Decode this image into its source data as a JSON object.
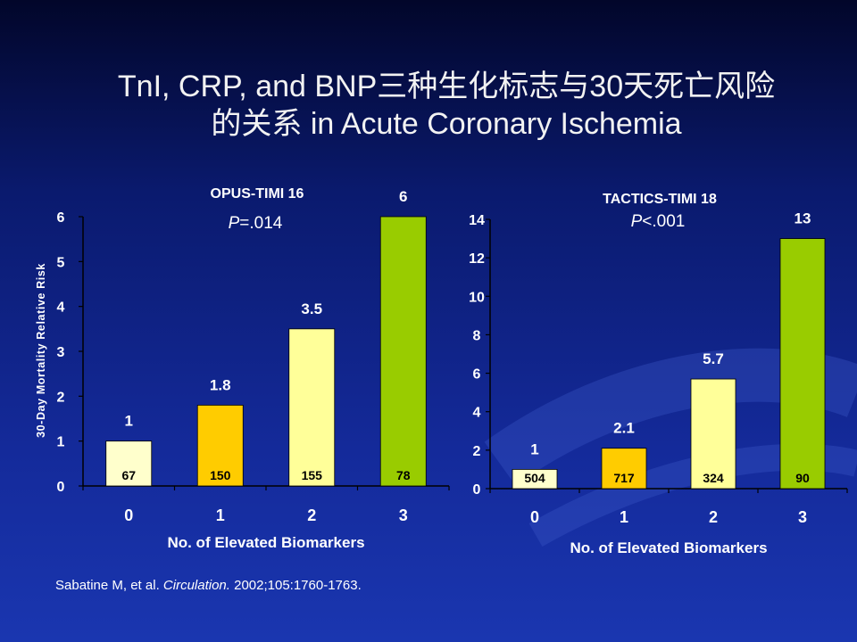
{
  "slide": {
    "title_line1": "TnI, CRP, and BNP三种生化标志与30天死亡风险",
    "title_line2": "的关系 in Acute Coronary Ischemia",
    "citation_prefix": "Sabatine M, et al. ",
    "citation_journal": "Circulation.",
    "citation_suffix": " 2002;105:1760-1763."
  },
  "chart_data": [
    {
      "type": "bar",
      "title": "OPUS-TIMI 16",
      "p_label": "P",
      "p_value": "=.014",
      "xlabel": "No. of Elevated Biomarkers",
      "ylabel": "30-Day Mortality Relative Risk",
      "categories": [
        "0",
        "1",
        "2",
        "3"
      ],
      "values": [
        1,
        1.8,
        3.5,
        6
      ],
      "value_labels": [
        "1",
        "1.8",
        "3.5",
        "6"
      ],
      "n_labels": [
        "67",
        "150",
        "155",
        "78"
      ],
      "bar_colors": [
        "#ffffcc",
        "#ffcc00",
        "#ffff99",
        "#99cc00"
      ],
      "ylim": [
        0,
        6
      ],
      "yticks": [
        0,
        1,
        2,
        3,
        4,
        5,
        6
      ],
      "grid": false
    },
    {
      "type": "bar",
      "title": "TACTICS-TIMI 18",
      "p_label": "P",
      "p_value": "<.001",
      "xlabel": "No. of Elevated Biomarkers",
      "ylabel": "",
      "categories": [
        "0",
        "1",
        "2",
        "3"
      ],
      "values": [
        1,
        2.1,
        5.7,
        13
      ],
      "value_labels": [
        "1",
        "2.1",
        "5.7",
        "13"
      ],
      "n_labels": [
        "504",
        "717",
        "324",
        "90"
      ],
      "bar_colors": [
        "#ffffcc",
        "#ffcc00",
        "#ffff99",
        "#99cc00"
      ],
      "ylim": [
        0,
        14
      ],
      "yticks": [
        0,
        2,
        4,
        6,
        8,
        10,
        12,
        14
      ],
      "grid": false
    }
  ]
}
